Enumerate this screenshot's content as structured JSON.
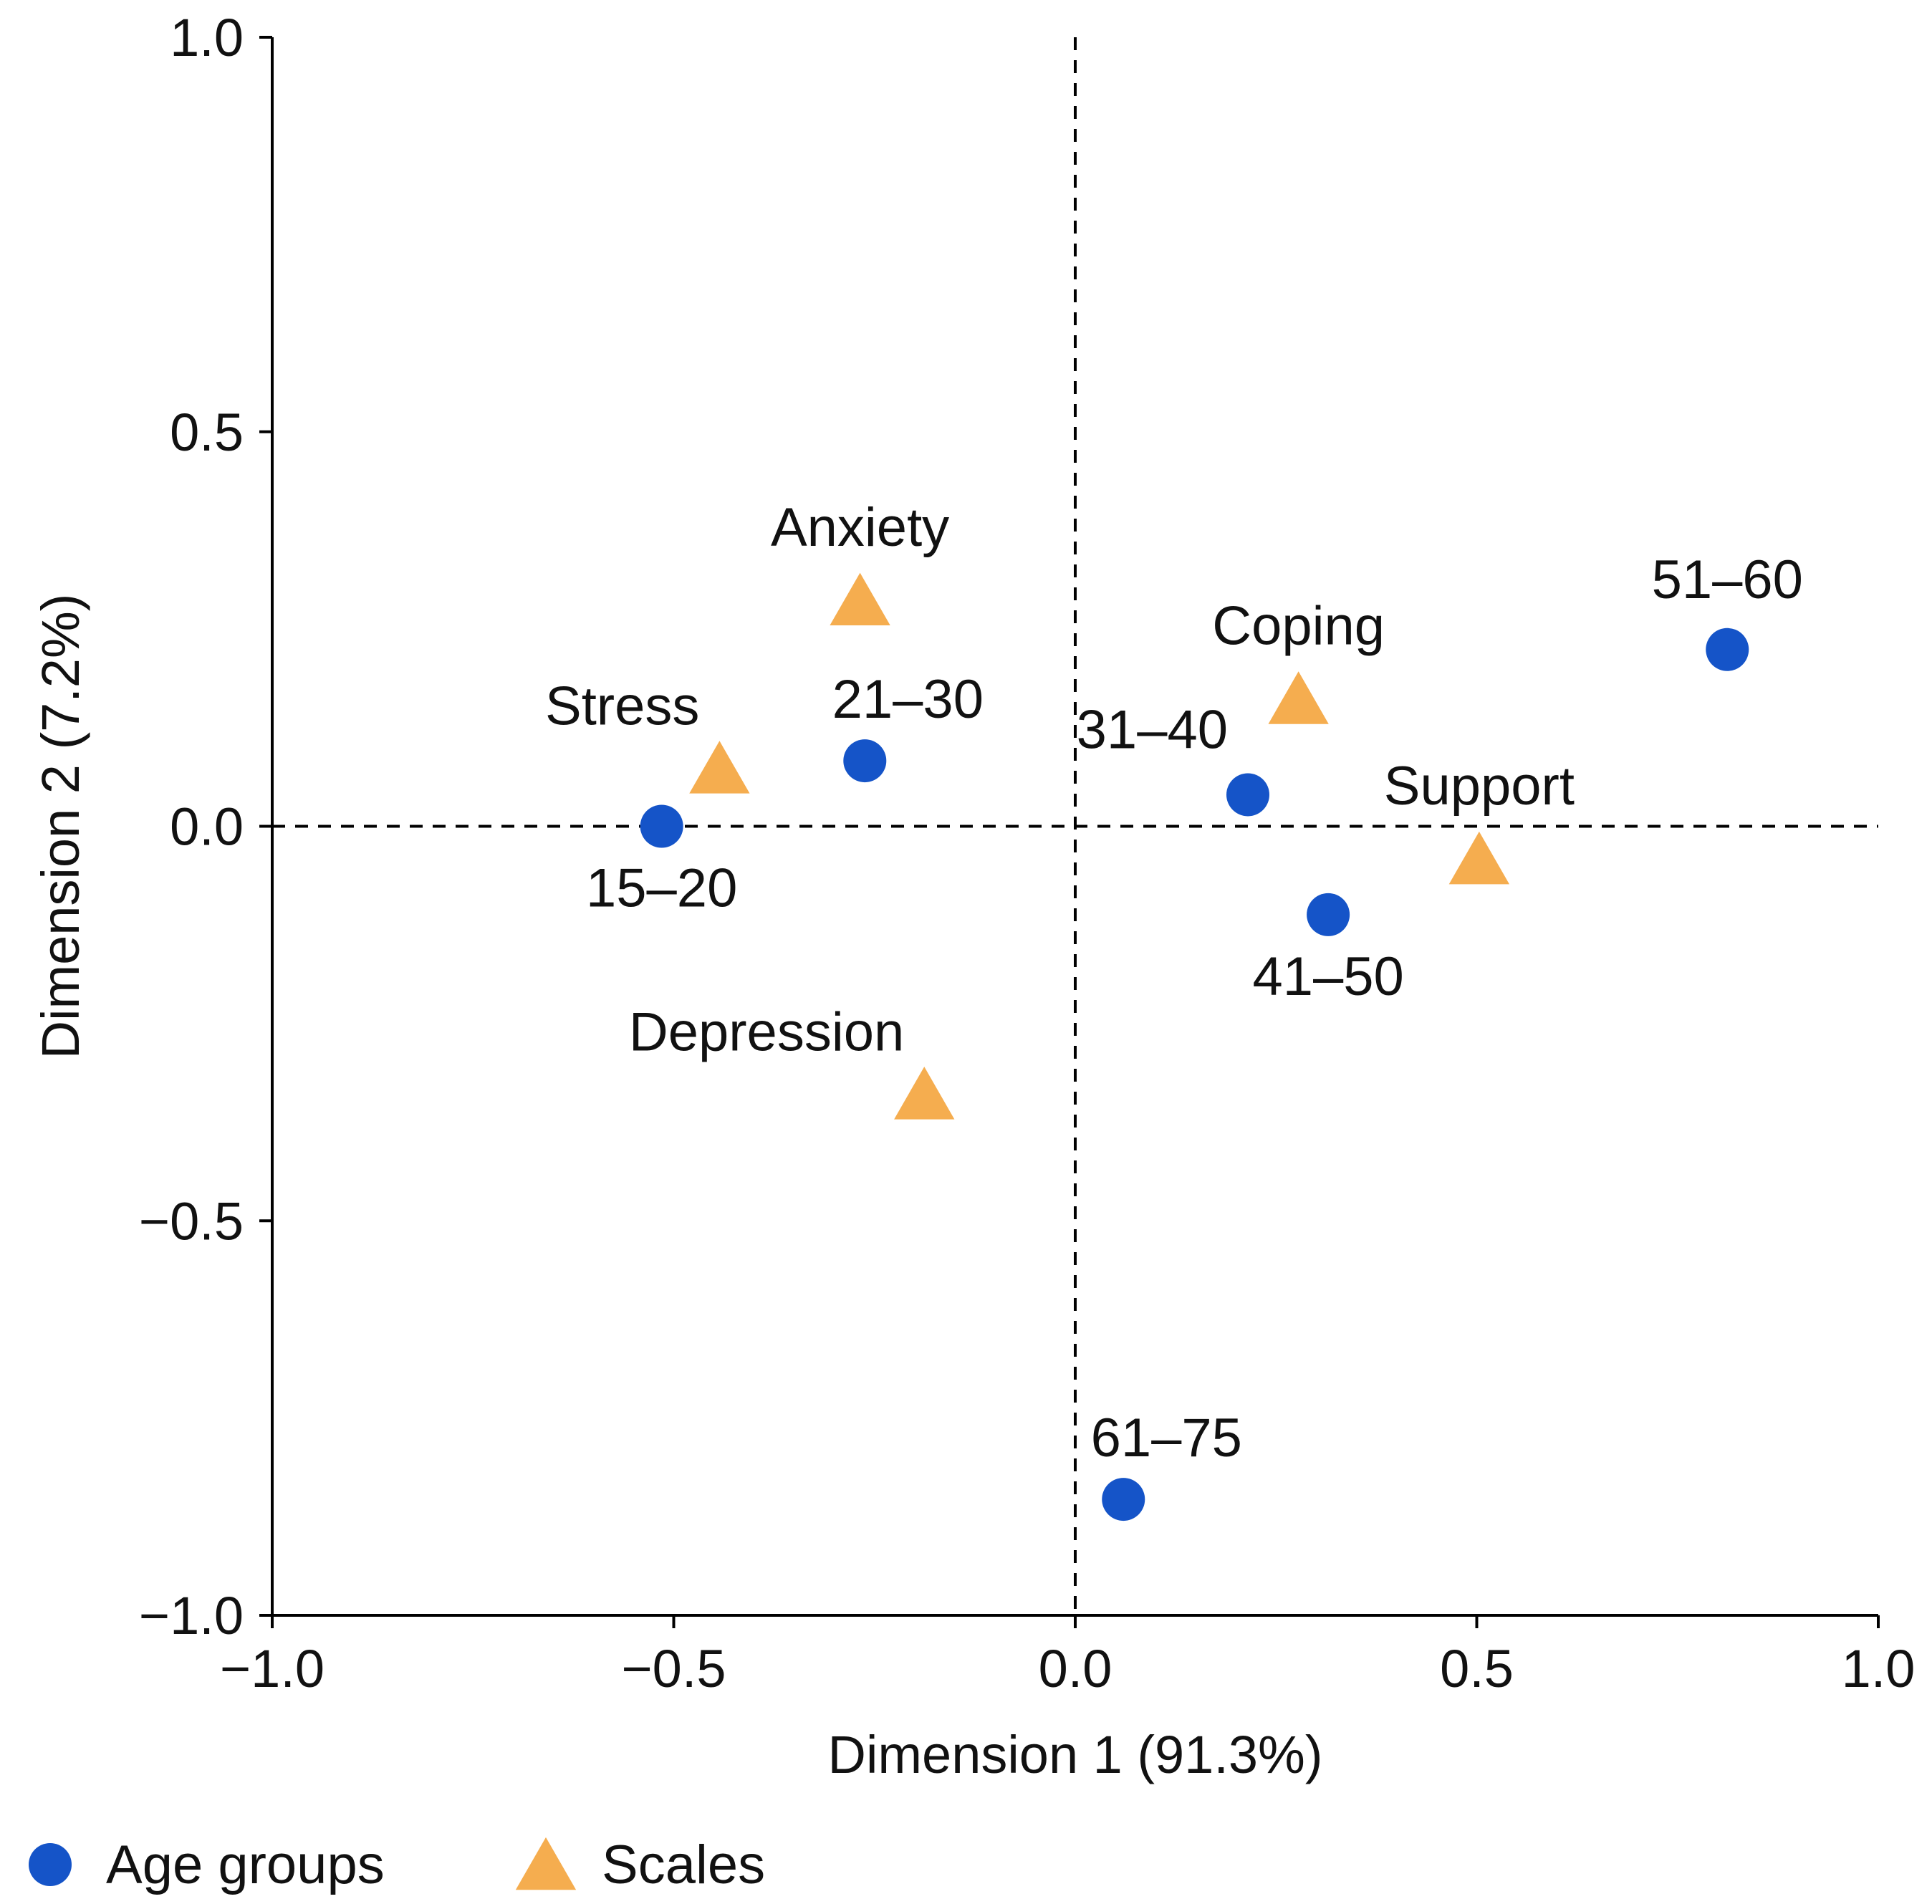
{
  "chart_data": {
    "type": "scatter",
    "title": "",
    "xlabel": "Dimension 1 (91.3%)",
    "ylabel": "Dimension 2 (7.2%)",
    "xlim": [
      -1.0,
      1.0
    ],
    "ylim": [
      -1.0,
      1.0
    ],
    "x_ticks": [
      -1.0,
      -0.5,
      0.0,
      0.5,
      1.0
    ],
    "x_tick_labels": [
      "−1.0",
      "−0.5",
      "0.0",
      "0.5",
      "1.0"
    ],
    "y_ticks": [
      -1.0,
      -0.5,
      0.0,
      0.5,
      1.0
    ],
    "y_tick_labels": [
      "−1.0",
      "−0.5",
      "0.0",
      "0.5",
      "1.0"
    ],
    "grid": false,
    "reference_lines": {
      "x": 0.0,
      "y": 0.0,
      "style": "dashed"
    },
    "legend_position": "bottom-left",
    "series": [
      {
        "name": "Age groups",
        "marker": "circle",
        "color": "#1554C8",
        "points": [
          {
            "label": "15–20",
            "x": -0.515,
            "y": 0.0,
            "label_side": "below"
          },
          {
            "label": "21–30",
            "x": -0.262,
            "y": 0.083,
            "label_side": "above-right"
          },
          {
            "label": "31–40",
            "x": 0.215,
            "y": 0.04,
            "label_side": "above-left"
          },
          {
            "label": "41–50",
            "x": 0.315,
            "y": -0.112,
            "label_side": "below"
          },
          {
            "label": "51–60",
            "x": 0.812,
            "y": 0.224,
            "label_side": "above"
          },
          {
            "label": "61–75",
            "x": 0.06,
            "y": -0.853,
            "label_side": "above-right"
          }
        ]
      },
      {
        "name": "Scales",
        "marker": "triangle",
        "color": "#F5AD4F",
        "points": [
          {
            "label": "Anxiety",
            "x": -0.268,
            "y": 0.283,
            "label_side": "above"
          },
          {
            "label": "Stress",
            "x": -0.443,
            "y": 0.07,
            "label_side": "above-left"
          },
          {
            "label": "Coping",
            "x": 0.278,
            "y": 0.158,
            "label_side": "above"
          },
          {
            "label": "Support",
            "x": 0.503,
            "y": -0.045,
            "label_side": "above"
          },
          {
            "label": "Depression",
            "x": -0.188,
            "y": -0.343,
            "label_side": "above-left"
          }
        ]
      }
    ]
  }
}
